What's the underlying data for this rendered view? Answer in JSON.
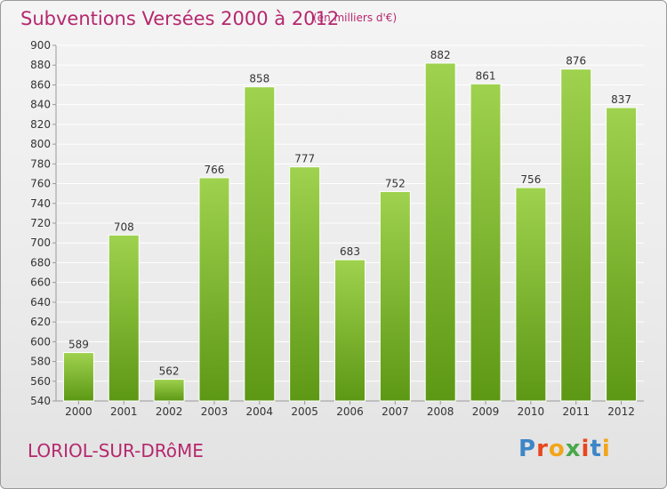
{
  "page": {
    "title": "Subventions Versées 2000 à 2012",
    "subtitle": "(en milliers d'€)",
    "commune": "LORIOL-SUR-DRôME",
    "logo": {
      "text": "Proxiti",
      "letter_colors": [
        "#3d86c8",
        "#e8461d",
        "#f2a51a",
        "#4aa84a",
        "#e8461d",
        "#3d86c8",
        "#f2a51a"
      ]
    }
  },
  "colors": {
    "title": "#b5286e",
    "bar_top": "#9fd24e",
    "bar_bottom": "#5d9815",
    "grid": "#ffffff",
    "axis_text": "#333333"
  },
  "chart_data": {
    "type": "bar",
    "categories": [
      "2000",
      "2001",
      "2002",
      "2003",
      "2004",
      "2005",
      "2006",
      "2007",
      "2008",
      "2009",
      "2010",
      "2011",
      "2012"
    ],
    "values": [
      589,
      708,
      562,
      766,
      858,
      777,
      683,
      752,
      882,
      861,
      756,
      876,
      837
    ],
    "data_labels": [
      "589",
      "708",
      "562",
      "766",
      "858",
      "777",
      "683",
      "752",
      "882",
      "861",
      "756",
      "876",
      "837"
    ],
    "ylim": [
      540,
      900
    ],
    "yticks": [
      540,
      560,
      580,
      600,
      620,
      640,
      660,
      680,
      700,
      720,
      740,
      760,
      780,
      800,
      820,
      840,
      860,
      880,
      900
    ],
    "grid": true,
    "legend": "none"
  }
}
